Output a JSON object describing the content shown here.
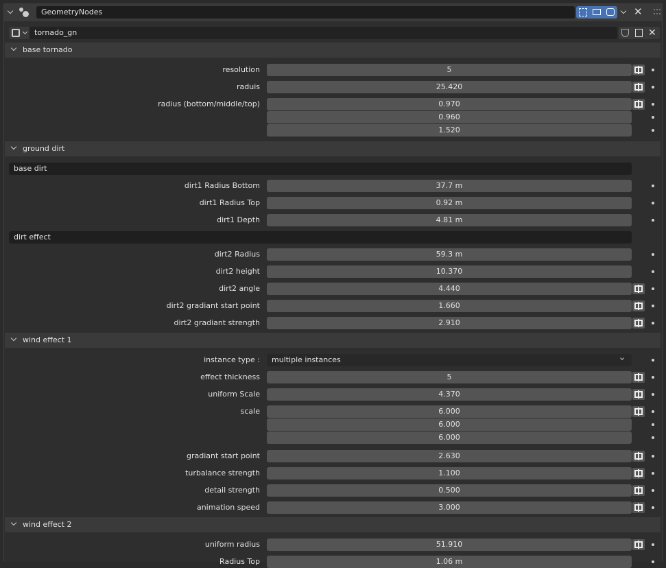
{
  "modifier": {
    "name": "GeometryNodes"
  },
  "node_group": {
    "name": "tornado_gn"
  },
  "panels": [
    {
      "title": "base tornado",
      "items": [
        {
          "label": "resolution",
          "values": [
            "5"
          ],
          "toggle": true
        },
        {
          "label": "raduis",
          "values": [
            "25.420"
          ],
          "toggle": true
        },
        {
          "label": "radius (bottom/middle/top)",
          "values": [
            "0.970",
            "0.960",
            "1.520"
          ],
          "toggle": true
        }
      ]
    },
    {
      "title": "ground dirt",
      "items": [
        {
          "heading": "base dirt"
        },
        {
          "label": "dirt1 Radius Bottom",
          "values": [
            "37.7 m"
          ],
          "toggle": false
        },
        {
          "label": "dirt1 Radius Top",
          "values": [
            "0.92 m"
          ],
          "toggle": false
        },
        {
          "label": "dirt1 Depth",
          "values": [
            "4.81 m"
          ],
          "toggle": false
        },
        {
          "heading": "dirt effect"
        },
        {
          "label": "dirt2 Radius",
          "values": [
            "59.3 m"
          ],
          "toggle": false
        },
        {
          "label": "dirt2 height",
          "values": [
            "10.370"
          ],
          "toggle": false
        },
        {
          "label": "dirt2 angle",
          "values": [
            "4.440"
          ],
          "toggle": true
        },
        {
          "label": "dirt2 gradiant start point",
          "values": [
            "1.660"
          ],
          "toggle": true
        },
        {
          "label": "dirt2 gradiant strength",
          "values": [
            "2.910"
          ],
          "toggle": true
        }
      ]
    },
    {
      "title": "wind effect 1",
      "items": [
        {
          "label": "instance type :",
          "choice": "multiple instances"
        },
        {
          "label": "effect thickness",
          "values": [
            "5"
          ],
          "toggle": true
        },
        {
          "label": "uniform Scale",
          "values": [
            "4.370"
          ],
          "toggle": true
        },
        {
          "label": "scale",
          "values": [
            "6.000",
            "6.000",
            "6.000"
          ],
          "toggle": true
        },
        {
          "label": "gradiant start point",
          "values": [
            "2.630"
          ],
          "toggle": true
        },
        {
          "label": "turbalance strength",
          "values": [
            "1.100"
          ],
          "toggle": true
        },
        {
          "label": "detail strength",
          "values": [
            "0.500"
          ],
          "toggle": true
        },
        {
          "label": "animation speed",
          "values": [
            "3.000"
          ],
          "toggle": true
        }
      ]
    },
    {
      "title": "wind effect 2",
      "items": [
        {
          "label": "uniform radius",
          "values": [
            "51.910"
          ],
          "toggle": true
        },
        {
          "label": "Radius Top",
          "values": [
            "1.06 m"
          ],
          "toggle": false
        }
      ]
    }
  ]
}
